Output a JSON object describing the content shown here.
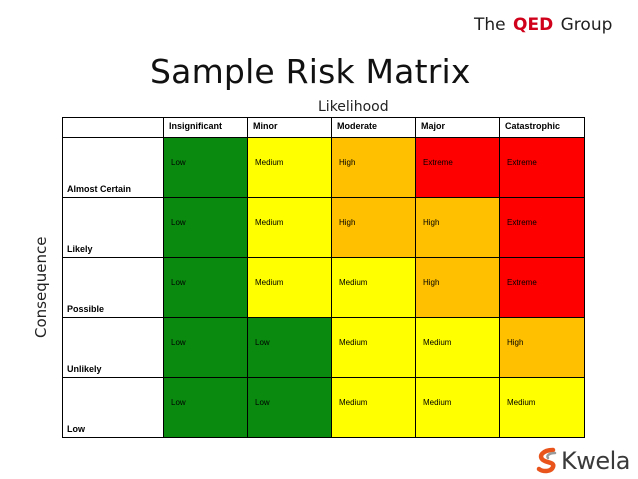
{
  "colors": {
    "low": "#0a8b10",
    "medium": "#ffff00",
    "high": "#ffc000",
    "extreme": "#ff0000",
    "brand_red": "#d0021b",
    "logo_orange": "#e8541c"
  },
  "header": {
    "brand_prefix": "The",
    "brand_name": "QED",
    "brand_suffix": "Group",
    "title": "Sample Risk Matrix"
  },
  "axes": {
    "likelihood": "Likelihood",
    "consequence": "Consequence"
  },
  "columns": [
    "Insignificant",
    "Minor",
    "Moderate",
    "Major",
    "Catastrophic"
  ],
  "rows": [
    {
      "label": "Almost Certain",
      "cells": [
        "Low",
        "Medium",
        "High",
        "Extreme",
        "Extreme"
      ]
    },
    {
      "label": "Likely",
      "cells": [
        "Low",
        "Medium",
        "High",
        "High",
        "Extreme"
      ]
    },
    {
      "label": "Possible",
      "cells": [
        "Low",
        "Medium",
        "Medium",
        "High",
        "Extreme"
      ]
    },
    {
      "label": "Unlikely",
      "cells": [
        "Low",
        "Low",
        "Medium",
        "Medium",
        "High"
      ]
    },
    {
      "label": "Low",
      "cells": [
        "Low",
        "Low",
        "Medium",
        "Medium",
        "Medium"
      ]
    }
  ],
  "logo": {
    "icon": "kwela-swirl-icon",
    "text": "Kwela"
  }
}
